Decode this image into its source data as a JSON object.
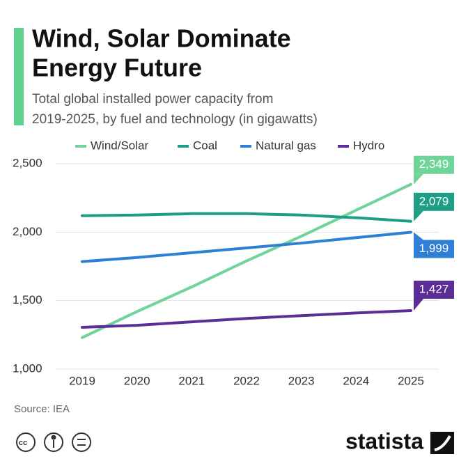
{
  "chart_data": {
    "type": "line",
    "title": [
      "Wind, Solar Dominate",
      "Energy Future"
    ],
    "subtitle": [
      "Total global installed power capacity from",
      "2019-2025, by fuel and technology (in gigawatts)"
    ],
    "source": "Source: IEA",
    "brand": "statista",
    "categories": [
      "2019",
      "2020",
      "2021",
      "2022",
      "2023",
      "2024",
      "2025"
    ],
    "series": [
      {
        "name": "Wind/Solar",
        "color": "#6fd39a",
        "values": [
          1230,
          1420,
          1600,
          1790,
          1970,
          2160,
          2349
        ],
        "value_labels": [
          null,
          null,
          null,
          null,
          null,
          null,
          "2,349"
        ]
      },
      {
        "name": "Coal",
        "color": "#1f9e86",
        "values": [
          2120,
          2125,
          2135,
          2135,
          2125,
          2105,
          2079
        ],
        "value_labels": [
          null,
          null,
          null,
          null,
          null,
          null,
          "2,079"
        ]
      },
      {
        "name": "Natural gas",
        "color": "#2e7fd6",
        "values": [
          1785,
          1815,
          1850,
          1885,
          1920,
          1960,
          1999
        ],
        "value_labels": [
          null,
          null,
          null,
          null,
          null,
          null,
          "1,999"
        ]
      },
      {
        "name": "Hydro",
        "color": "#5b2d96",
        "values": [
          1305,
          1320,
          1345,
          1370,
          1390,
          1410,
          1427
        ],
        "value_labels": [
          null,
          null,
          null,
          null,
          null,
          null,
          "1,427"
        ]
      }
    ],
    "ylim": [
      1000,
      2500
    ],
    "yticks": [
      {
        "value": 1000,
        "label": "1,000"
      },
      {
        "value": 1500,
        "label": "1,500"
      },
      {
        "value": 2000,
        "label": "2,000"
      },
      {
        "value": 2500,
        "label": "2,500"
      }
    ],
    "grid": true,
    "legend": "top"
  }
}
